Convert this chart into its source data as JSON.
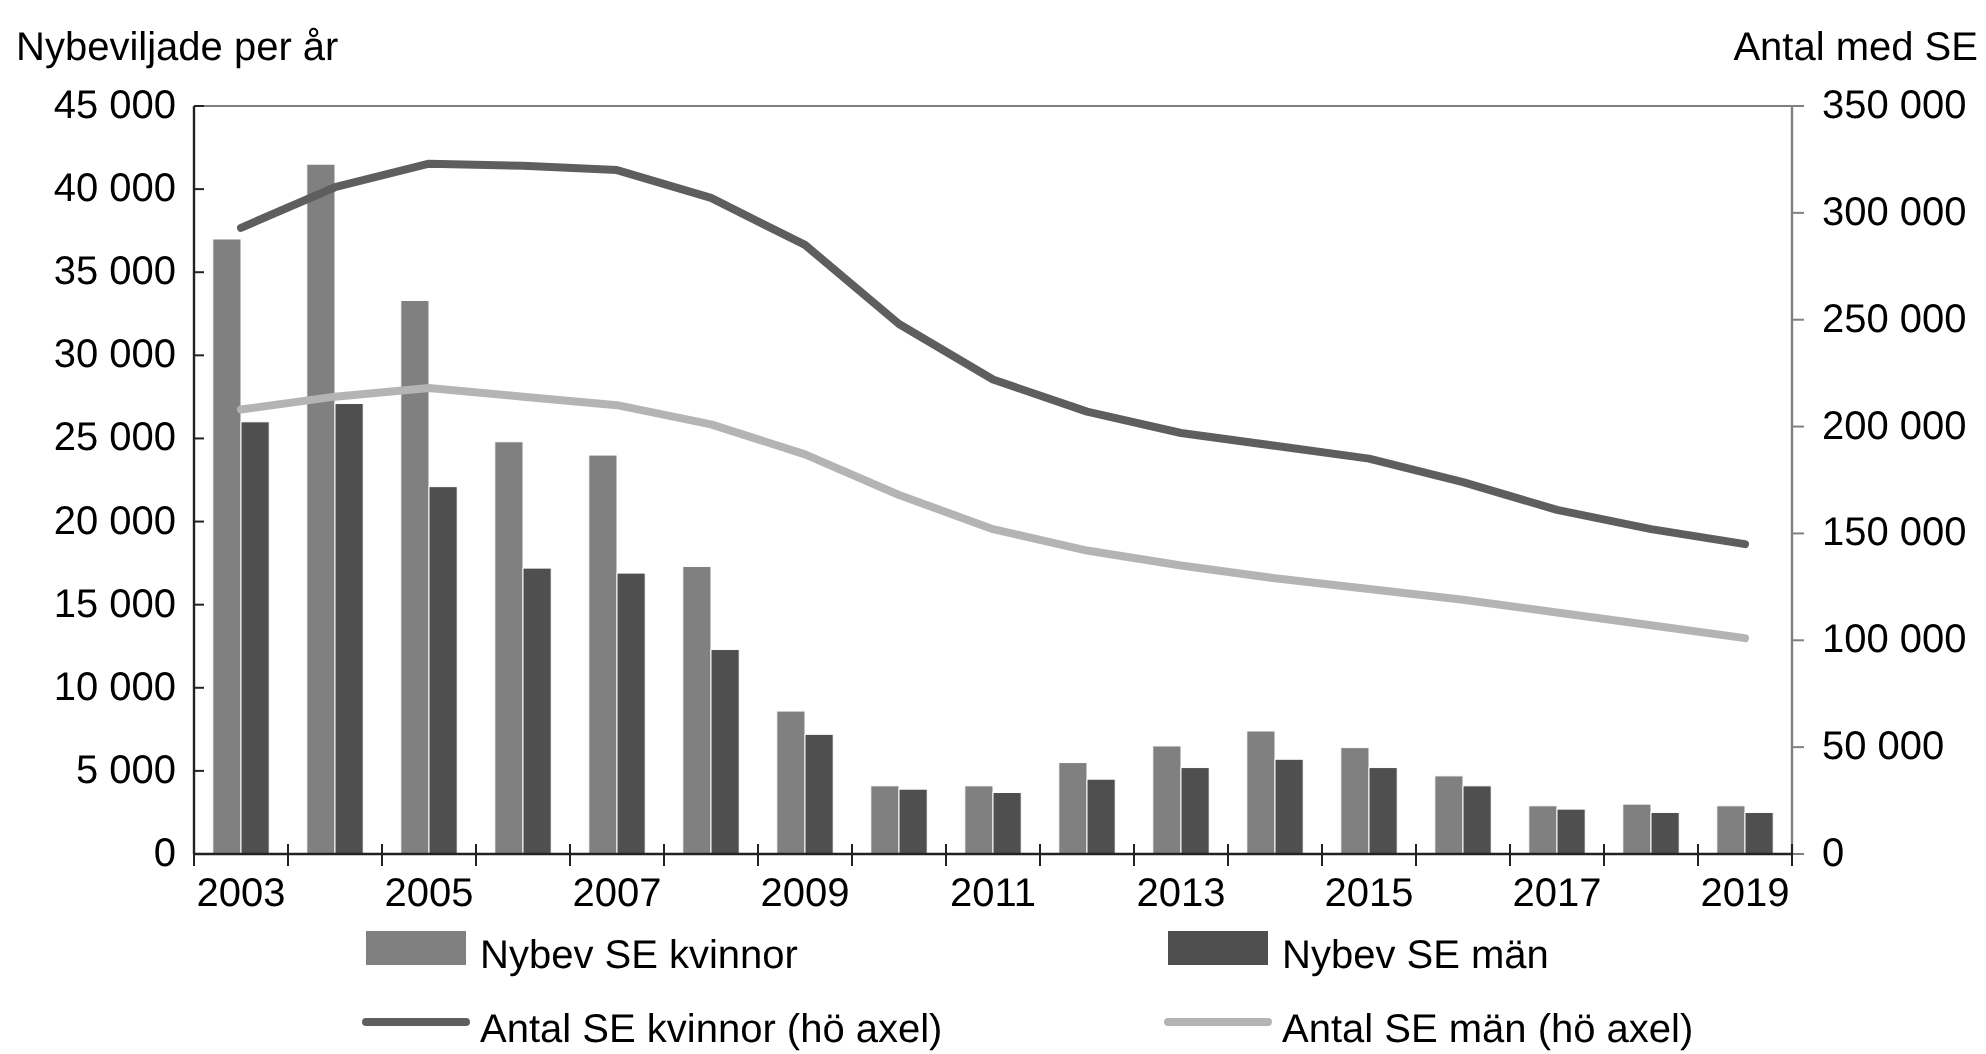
{
  "chart_data": {
    "type": "bar",
    "ylabel": "Nybeviljade per år",
    "y2label": "Antal med SE",
    "categories": [
      "2003",
      null,
      "2005",
      null,
      "2007",
      null,
      "2009",
      null,
      "2011",
      null,
      "2013",
      null,
      "2015",
      null,
      "2017",
      null,
      "2019"
    ],
    "series": [
      {
        "name": "Nybev SE kvinnor",
        "color": "#808080",
        "values": [
          37000,
          41500,
          33300,
          24800,
          24000,
          17300,
          8600,
          4100,
          4100,
          5500,
          6500,
          7400,
          6400,
          4700,
          2900,
          3000,
          2900
        ]
      },
      {
        "name": "Nybev SE män",
        "color": "#4f4f4f",
        "values": [
          26000,
          27100,
          22100,
          17200,
          16900,
          12300,
          7200,
          3900,
          3700,
          4500,
          5200,
          5700,
          5200,
          4100,
          2700,
          2500,
          2500
        ]
      },
      {
        "name": "Antal SE kvinnor (hö axel)",
        "type": "line",
        "axis": "y2",
        "color": "#5e5e5e",
        "values": [
          293000,
          312000,
          323000,
          322000,
          320000,
          307000,
          285000,
          248000,
          222000,
          207000,
          197000,
          191000,
          185000,
          174000,
          161000,
          152000,
          145000
        ]
      },
      {
        "name": "Antal SE män (hö axel)",
        "type": "line",
        "axis": "y2",
        "color": "#b4b4b4",
        "values": [
          208000,
          214000,
          218000,
          214000,
          210000,
          201000,
          187000,
          168000,
          152000,
          142000,
          135000,
          129000,
          124000,
          119000,
          113000,
          107000,
          101000
        ]
      }
    ],
    "ylim": [
      0,
      45000
    ],
    "yticks": [
      0,
      {
        "value": 5000,
        "label": "5 000"
      },
      {
        "value": 10000,
        "label": "10 000"
      },
      {
        "value": 15000,
        "label": "15 000"
      },
      {
        "value": 20000,
        "label": "20 000"
      },
      {
        "value": 25000,
        "label": "25 000"
      },
      {
        "value": 30000,
        "label": "30 000"
      },
      {
        "value": 35000,
        "label": "35 000"
      },
      {
        "value": 40000,
        "label": "40 000"
      },
      {
        "value": 45000,
        "label": "45 000"
      }
    ],
    "y2lim": [
      0,
      350000
    ],
    "y2ticks": [
      0,
      {
        "value": 50000,
        "label": "50 000"
      },
      {
        "value": 100000,
        "label": "100 000"
      },
      {
        "value": 150000,
        "label": "150 000"
      },
      {
        "value": 200000,
        "label": "200 000"
      },
      {
        "value": 250000,
        "label": "250 000"
      },
      {
        "value": 300000,
        "label": "300 000"
      },
      {
        "value": 350000,
        "label": "350 000"
      }
    ],
    "legend": "bottom"
  }
}
